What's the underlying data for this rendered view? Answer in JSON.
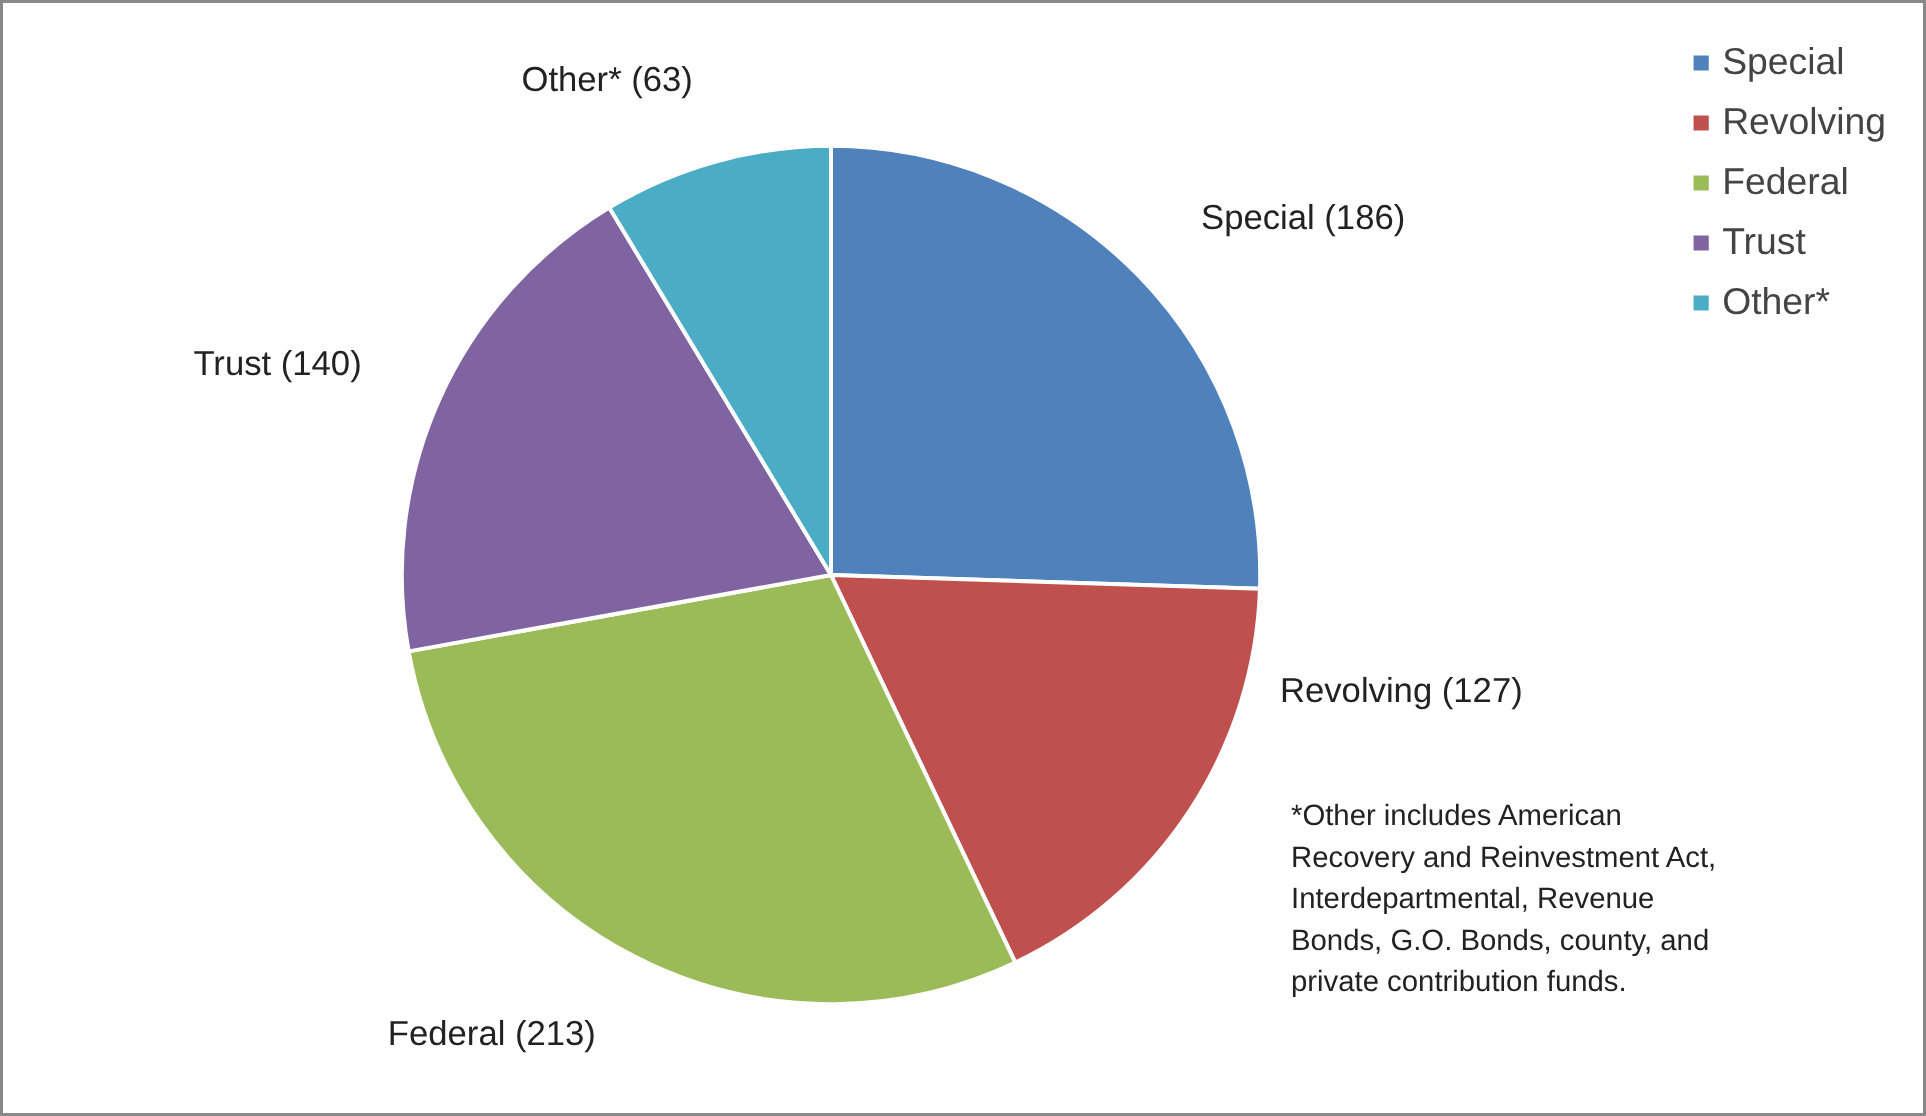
{
  "chart_data": {
    "type": "pie",
    "categories": [
      "Special",
      "Revolving",
      "Federal",
      "Trust",
      "Other*"
    ],
    "values": [
      186,
      127,
      213,
      140,
      63
    ],
    "colors": [
      "#4f81bd",
      "#c0504d",
      "#9bbb59",
      "#8064a2",
      "#4bacc6"
    ],
    "value_labels": [
      "Special  (186)",
      "Revolving (127)",
      "Federal (213)",
      "Trust (140)",
      "Other* (63)"
    ],
    "legend": "top right",
    "annotations": [
      "*Other includes American Recovery and Reinvestment Act, Interdepartmental, Revenue Bonds, G.O. Bonds, county, and private contribution funds."
    ]
  }
}
